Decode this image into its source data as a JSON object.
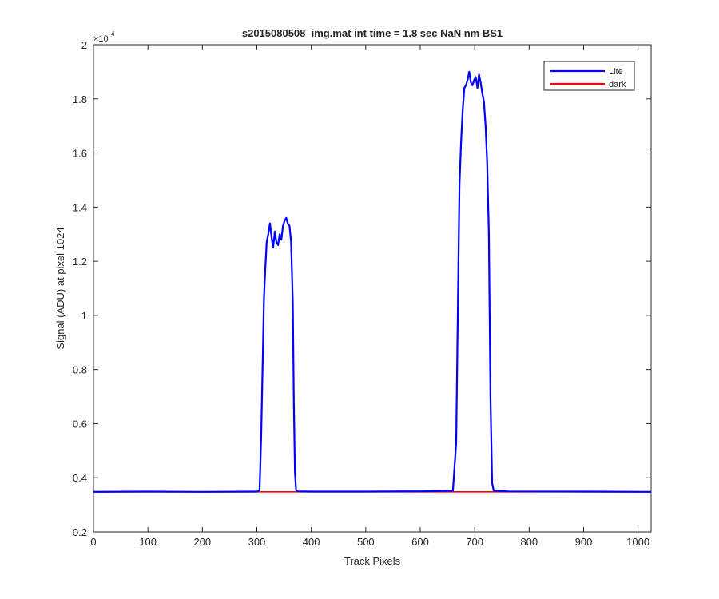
{
  "chart_data": {
    "type": "line",
    "title": "s2015080508_img.mat int time = 1.8 sec  NaN nm BS1",
    "xlabel": "Track Pixels",
    "ylabel": "Signal (ADU) at pixel 1024",
    "y_exponent_label": "×10",
    "y_exponent_power": "4",
    "xlim": [
      0,
      1024
    ],
    "ylim": [
      0.2,
      2.0
    ],
    "y_scale_multiplier": 10000,
    "xticks": [
      0,
      100,
      200,
      300,
      400,
      500,
      600,
      700,
      800,
      900,
      1000
    ],
    "xtick_labels": [
      "0",
      "100",
      "200",
      "300",
      "400",
      "500",
      "600",
      "700",
      "800",
      "900",
      "1000"
    ],
    "yticks": [
      0.2,
      0.4,
      0.6,
      0.8,
      1.0,
      1.2,
      1.4,
      1.6,
      1.8,
      2.0
    ],
    "ytick_labels": [
      "0.2",
      "0.4",
      "0.6",
      "0.8",
      "1",
      "1.2",
      "1.4",
      "1.6",
      "1.8",
      "2"
    ],
    "grid": false,
    "legend_position": "top-right",
    "series": [
      {
        "name": "Lite",
        "color": "#0000ff",
        "x": [
          0,
          100,
          200,
          300,
          305,
          308,
          311,
          313,
          315,
          318,
          321,
          324,
          327,
          330,
          333,
          336,
          339,
          342,
          345,
          348,
          351,
          354,
          357,
          360,
          363,
          366,
          368,
          370,
          372,
          375,
          400,
          500,
          600,
          660,
          666,
          669,
          672,
          675,
          678,
          681,
          684,
          687,
          690,
          693,
          696,
          699,
          702,
          705,
          708,
          711,
          714,
          717,
          720,
          723,
          726,
          729,
          732,
          735,
          760,
          900,
          1024
        ],
        "y": [
          0.348,
          0.349,
          0.348,
          0.349,
          0.352,
          0.55,
          0.85,
          1.06,
          1.15,
          1.27,
          1.3,
          1.34,
          1.29,
          1.25,
          1.31,
          1.27,
          1.26,
          1.3,
          1.28,
          1.33,
          1.35,
          1.36,
          1.34,
          1.33,
          1.27,
          1.05,
          0.68,
          0.42,
          0.355,
          0.35,
          0.349,
          0.349,
          0.35,
          0.352,
          0.53,
          1.0,
          1.48,
          1.64,
          1.76,
          1.84,
          1.85,
          1.87,
          1.9,
          1.86,
          1.85,
          1.87,
          1.88,
          1.84,
          1.89,
          1.86,
          1.82,
          1.79,
          1.7,
          1.56,
          1.3,
          0.7,
          0.38,
          0.352,
          0.35,
          0.349,
          0.348
        ]
      },
      {
        "name": "dark",
        "color": "#ff0000",
        "x": [
          0,
          1024
        ],
        "y": [
          0.348,
          0.348
        ]
      }
    ]
  }
}
